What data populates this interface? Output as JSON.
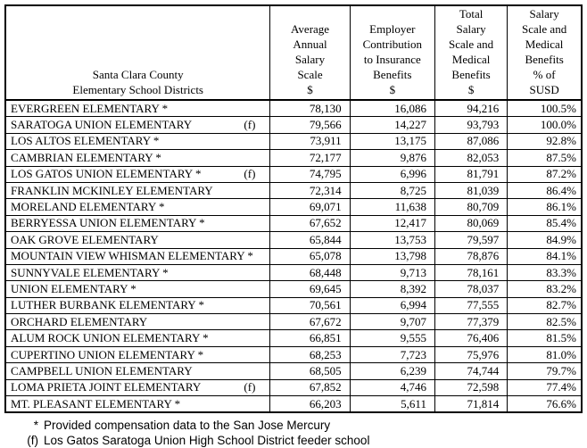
{
  "table": {
    "corner_header": "Santa Clara County\nElementary School Districts",
    "columns": [
      {
        "label": "Average\nAnnual\nSalary\nScale\n$"
      },
      {
        "label": "Employer\nContribution\nto Insurance\nBenefits\n$"
      },
      {
        "label": "Total\nSalary\nScale and\nMedical\nBenefits\n$"
      },
      {
        "label": "Salary\nScale and\nMedical\nBenefits\n% of\nSUSD"
      }
    ],
    "rows": [
      {
        "district": "EVERGREEN ELEMENTARY *",
        "marker": "",
        "salary": "78,130",
        "insurance": "16,086",
        "total": "94,216",
        "percent": "100.5%"
      },
      {
        "district": "SARATOGA UNION ELEMENTARY",
        "marker": "(f)",
        "salary": "79,566",
        "insurance": "14,227",
        "total": "93,793",
        "percent": "100.0%"
      },
      {
        "district": "LOS ALTOS ELEMENTARY *",
        "marker": "",
        "salary": "73,911",
        "insurance": "13,175",
        "total": "87,086",
        "percent": "92.8%"
      },
      {
        "district": "CAMBRIAN ELEMENTARY *",
        "marker": "",
        "salary": "72,177",
        "insurance": "9,876",
        "total": "82,053",
        "percent": "87.5%"
      },
      {
        "district": "LOS GATOS UNION ELEMENTARY *",
        "marker": "(f)",
        "salary": "74,795",
        "insurance": "6,996",
        "total": "81,791",
        "percent": "87.2%"
      },
      {
        "district": "FRANKLIN MCKINLEY ELEMENTARY",
        "marker": "",
        "salary": "72,314",
        "insurance": "8,725",
        "total": "81,039",
        "percent": "86.4%"
      },
      {
        "district": "MORELAND ELEMENTARY *",
        "marker": "",
        "salary": "69,071",
        "insurance": "11,638",
        "total": "80,709",
        "percent": "86.1%"
      },
      {
        "district": "BERRYESSA UNION ELEMENTARY *",
        "marker": "",
        "salary": "67,652",
        "insurance": "12,417",
        "total": "80,069",
        "percent": "85.4%"
      },
      {
        "district": "OAK GROVE ELEMENTARY",
        "marker": "",
        "salary": "65,844",
        "insurance": "13,753",
        "total": "79,597",
        "percent": "84.9%"
      },
      {
        "district": "MOUNTAIN VIEW WHISMAN ELEMENTARY *",
        "marker": "",
        "salary": "65,078",
        "insurance": "13,798",
        "total": "78,876",
        "percent": "84.1%"
      },
      {
        "district": "SUNNYVALE ELEMENTARY *",
        "marker": "",
        "salary": "68,448",
        "insurance": "9,713",
        "total": "78,161",
        "percent": "83.3%"
      },
      {
        "district": "UNION ELEMENTARY *",
        "marker": "",
        "salary": "69,645",
        "insurance": "8,392",
        "total": "78,037",
        "percent": "83.2%"
      },
      {
        "district": "LUTHER BURBANK ELEMENTARY *",
        "marker": "",
        "salary": "70,561",
        "insurance": "6,994",
        "total": "77,555",
        "percent": "82.7%"
      },
      {
        "district": "ORCHARD ELEMENTARY",
        "marker": "",
        "salary": "67,672",
        "insurance": "9,707",
        "total": "77,379",
        "percent": "82.5%"
      },
      {
        "district": "ALUM ROCK UNION ELEMENTARY *",
        "marker": "",
        "salary": "66,851",
        "insurance": "9,555",
        "total": "76,406",
        "percent": "81.5%"
      },
      {
        "district": "CUPERTINO UNION ELEMENTARY *",
        "marker": "",
        "salary": "68,253",
        "insurance": "7,723",
        "total": "75,976",
        "percent": "81.0%"
      },
      {
        "district": "CAMPBELL UNION ELEMENTARY",
        "marker": "",
        "salary": "68,505",
        "insurance": "6,239",
        "total": "74,744",
        "percent": "79.7%"
      },
      {
        "district": "LOMA PRIETA JOINT ELEMENTARY",
        "marker": "(f)",
        "salary": "67,852",
        "insurance": "4,746",
        "total": "72,598",
        "percent": "77.4%"
      },
      {
        "district": "MT. PLEASANT ELEMENTARY *",
        "marker": "",
        "salary": "66,203",
        "insurance": "5,611",
        "total": "71,814",
        "percent": "76.6%"
      }
    ]
  },
  "footnotes": [
    {
      "symbol": "*",
      "text": "Provided compensation data to the San Jose Mercury"
    },
    {
      "symbol": "(f)",
      "text": "Los Gatos Saratoga Union High School District feeder school"
    }
  ]
}
